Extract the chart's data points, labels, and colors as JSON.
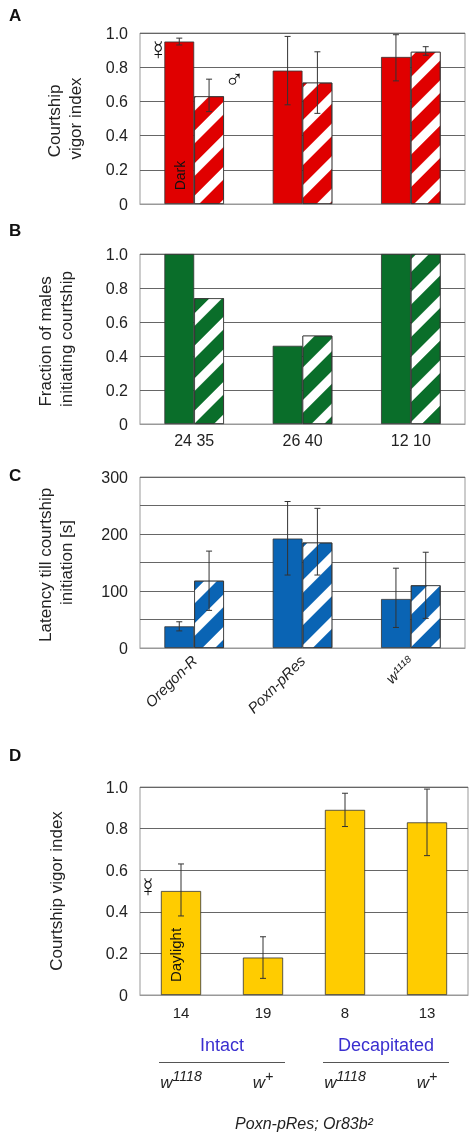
{
  "chart_data": [
    {
      "type": "bar",
      "title": "A",
      "ylabel": "Courtship vigor index",
      "categories": [
        "Oregon-R",
        "Poxn-pRes",
        "w¹¹¹⁸"
      ],
      "tick_labels": "y",
      "grid": "y",
      "ylim": [
        0,
        1
      ],
      "yticks": [
        0,
        0.2,
        0.4,
        0.6,
        0.8,
        {
          "value": 1,
          "label": "1.0"
        }
      ],
      "series": [
        {
          "color": "#e00000",
          "values": [
            0.95,
            0.78,
            0.86
          ],
          "errors": [
            [
              0.93,
              0.97
            ],
            [
              0.58,
              0.98
            ],
            [
              0.72,
              0.99
            ]
          ]
        },
        {
          "color": "#e00000",
          "values": [
            0.63,
            0.71,
            0.89
          ],
          "errors": [
            [
              0.54,
              0.73
            ],
            [
              0.53,
              0.89
            ],
            [
              0.87,
              0.92
            ]
          ]
        }
      ],
      "annotations": [
        {
          "text": "☿",
          "x": "Oregon-R",
          "y": 0.9
        },
        {
          "text": "♂",
          "x": "Oregon-R",
          "y": 0.73
        },
        {
          "text": "Dark",
          "x": "Oregon-R",
          "y": 0.08
        }
      ]
    },
    {
      "type": "bar",
      "title": "B",
      "ylabel": "Fraction of males initiating courtship",
      "categories": [
        "Oregon-R",
        "Poxn-pRes",
        "w¹¹¹⁸"
      ],
      "tick_labels": "y",
      "grid": "y",
      "ylim": [
        0,
        1
      ],
      "yticks": [
        0,
        0.2,
        0.4,
        0.6,
        0.8,
        {
          "value": 1,
          "label": "1.0"
        }
      ],
      "series": [
        {
          "color": "#0a6e2a",
          "values": [
            1,
            0.46,
            1
          ]
        },
        {
          "color": "#0a6e2a",
          "values": [
            0.74,
            0.52,
            1
          ]
        }
      ],
      "annotations": [
        "24 35",
        "26 40",
        "12 10"
      ]
    },
    {
      "type": "bar",
      "title": "C",
      "ylabel": "Latency till courtship initiation [s]",
      "categories": [
        "Oregon-R",
        "Poxn-pRes",
        "w¹¹¹⁸"
      ],
      "grid": "y",
      "ylim": [
        0,
        300
      ],
      "yticks": [
        0,
        {
          "value": 50,
          "label": null
        },
        100,
        {
          "value": 150,
          "label": null
        },
        200,
        {
          "value": 250,
          "label": null
        },
        300
      ],
      "series": [
        {
          "color": "#0a64b4",
          "values": [
            38,
            192,
            86
          ],
          "errors": [
            [
              30,
              46
            ],
            [
              128,
              257
            ],
            [
              36,
              140
            ]
          ]
        },
        {
          "color": "#0a64b4",
          "values": [
            118,
            185,
            110
          ],
          "errors": [
            [
              66,
              170
            ],
            [
              128,
              245
            ],
            [
              52,
              168
            ]
          ]
        }
      ]
    },
    {
      "type": "bar",
      "title": "D",
      "ylabel": "Courtship vigor index",
      "xlabel": "Poxn-pRes; Or83b²",
      "categories": [
        "14",
        "19",
        "8",
        "13"
      ],
      "grid": "y",
      "ylim": [
        0,
        1
      ],
      "yticks": [
        0,
        0.2,
        0.4,
        0.6,
        0.8,
        {
          "value": 1,
          "label": "1.0"
        }
      ],
      "series": [
        {
          "color": "#ffcc00",
          "values": [
            0.5,
            0.18,
            0.89,
            0.83
          ],
          "errors": [
            [
              0.38,
              0.63
            ],
            [
              0.08,
              0.28
            ],
            [
              0.81,
              0.97
            ],
            [
              0.67,
              0.99
            ]
          ]
        }
      ],
      "annotations": [
        {
          "text": "☿",
          "x": "14",
          "y": 0.52
        },
        "Daylight",
        "Intact",
        "Decapitated",
        "w$^{1118}$",
        "w$^{+}$",
        "w$^{1118}$",
        "w$^{+}$"
      ]
    }
  ]
}
